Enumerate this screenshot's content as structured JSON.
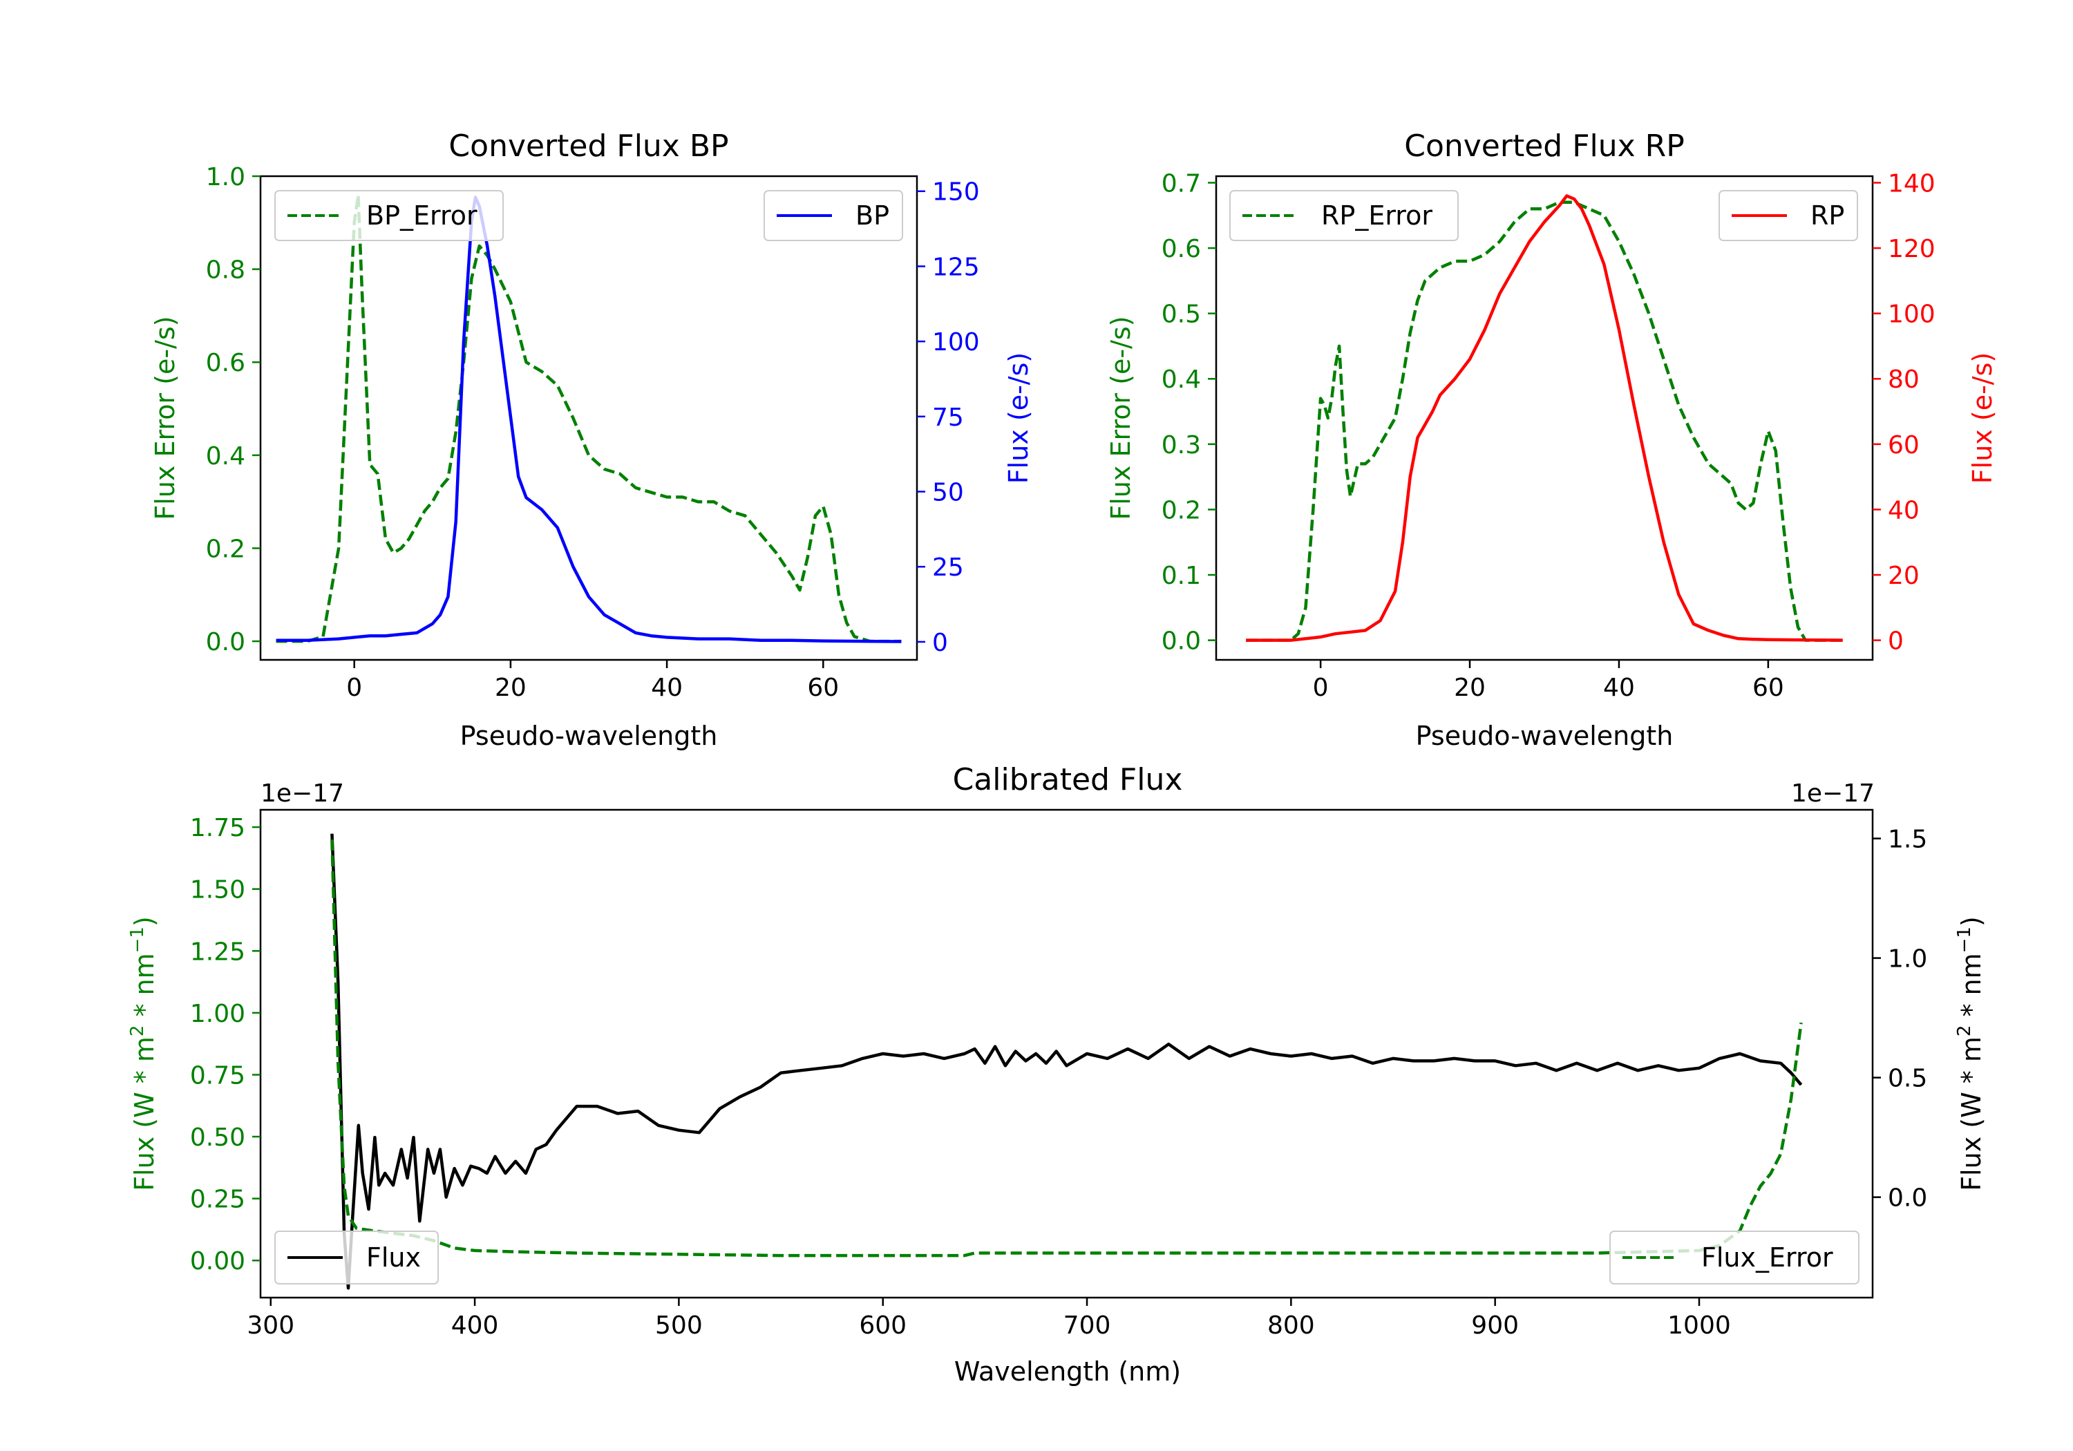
{
  "colors": {
    "bp": "#0000ff",
    "rp": "#ff0000",
    "error": "#008000",
    "flux": "#000000",
    "axis": "#000000"
  },
  "chart_data": [
    {
      "id": "bp",
      "type": "line",
      "title": "Converted Flux BP",
      "xlabel": "Pseudo-wavelength",
      "ylabel_left": "Flux Error (e-/s)",
      "ylabel_right": "Flux (e-/s)",
      "xlim": [
        -12,
        72
      ],
      "ylim_left": [
        -0.04,
        1.0
      ],
      "ylim_right": [
        -6,
        155
      ],
      "xticks": [
        0,
        20,
        40,
        60
      ],
      "yticks_left": [
        0.0,
        0.2,
        0.4,
        0.6,
        0.8,
        1.0
      ],
      "yticks_right": [
        0,
        25,
        50,
        75,
        100,
        125,
        150
      ],
      "xtick_labels": [
        "0",
        "20",
        "40",
        "60"
      ],
      "ytick_labels_left": [
        "0.0",
        "0.2",
        "0.4",
        "0.6",
        "0.8",
        "1.0"
      ],
      "ytick_labels_right": [
        "0",
        "25",
        "50",
        "75",
        "100",
        "125",
        "150"
      ],
      "legend_left": {
        "label": "BP_Error",
        "position": "upper left"
      },
      "legend_right": {
        "label": "BP",
        "position": "upper right"
      },
      "series": [
        {
          "name": "BP_Error",
          "axis": "left",
          "style": "dashed",
          "color": "#008000",
          "x": [
            -10,
            -6,
            -4,
            -2,
            -1,
            0,
            0.5,
            1,
            2,
            3,
            4,
            5,
            6,
            7,
            8,
            9,
            10,
            11,
            12,
            13,
            14,
            15,
            16,
            17,
            18,
            20,
            22,
            24,
            26,
            28,
            30,
            32,
            34,
            36,
            38,
            40,
            42,
            44,
            46,
            48,
            50,
            52,
            54,
            56,
            57,
            58,
            59,
            60,
            61,
            62,
            63,
            64,
            66,
            70
          ],
          "y": [
            0.0,
            0.0,
            0.01,
            0.2,
            0.55,
            0.9,
            0.96,
            0.75,
            0.38,
            0.36,
            0.22,
            0.19,
            0.2,
            0.22,
            0.25,
            0.28,
            0.3,
            0.33,
            0.35,
            0.45,
            0.6,
            0.78,
            0.85,
            0.83,
            0.8,
            0.73,
            0.6,
            0.58,
            0.55,
            0.48,
            0.4,
            0.37,
            0.36,
            0.33,
            0.32,
            0.31,
            0.31,
            0.3,
            0.3,
            0.28,
            0.27,
            0.23,
            0.19,
            0.14,
            0.11,
            0.18,
            0.27,
            0.29,
            0.23,
            0.1,
            0.04,
            0.01,
            0.0,
            0.0
          ]
        },
        {
          "name": "BP",
          "axis": "right",
          "style": "solid",
          "color": "#0000ff",
          "x": [
            -10,
            -6,
            -2,
            0,
            2,
            4,
            6,
            8,
            10,
            11,
            12,
            13,
            14,
            15,
            15.5,
            16,
            17,
            18,
            19,
            20,
            21,
            22,
            23,
            24,
            26,
            28,
            30,
            32,
            34,
            36,
            38,
            40,
            44,
            48,
            52,
            56,
            60,
            64,
            70
          ],
          "y": [
            0.5,
            0.5,
            1,
            1.5,
            2,
            2,
            2.5,
            3,
            6,
            9,
            15,
            40,
            100,
            140,
            148,
            145,
            132,
            115,
            95,
            75,
            55,
            48,
            46,
            44,
            38,
            25,
            15,
            9,
            6,
            3,
            2,
            1.5,
            1,
            1,
            0.5,
            0.5,
            0.3,
            0.2,
            0.1
          ]
        }
      ]
    },
    {
      "id": "rp",
      "type": "line",
      "title": "Converted Flux RP",
      "xlabel": "Pseudo-wavelength",
      "ylabel_left": "Flux Error (e-/s)",
      "ylabel_right": "Flux (e-/s)",
      "xlim": [
        -14,
        74
      ],
      "ylim_left": [
        -0.03,
        0.71
      ],
      "ylim_right": [
        -6,
        142
      ],
      "xticks": [
        0,
        20,
        40,
        60
      ],
      "yticks_left": [
        0.0,
        0.1,
        0.2,
        0.3,
        0.4,
        0.5,
        0.6,
        0.7
      ],
      "yticks_right": [
        0,
        20,
        40,
        60,
        80,
        100,
        120,
        140
      ],
      "xtick_labels": [
        "0",
        "20",
        "40",
        "60"
      ],
      "ytick_labels_left": [
        "0.0",
        "0.1",
        "0.2",
        "0.3",
        "0.4",
        "0.5",
        "0.6",
        "0.7"
      ],
      "ytick_labels_right": [
        "0",
        "20",
        "40",
        "60",
        "80",
        "100",
        "120",
        "140"
      ],
      "legend_left": {
        "label": "RP_Error",
        "position": "upper left"
      },
      "legend_right": {
        "label": "RP",
        "position": "upper right"
      },
      "series": [
        {
          "name": "RP_Error",
          "axis": "left",
          "style": "dashed",
          "color": "#008000",
          "x": [
            -10,
            -4,
            -3,
            -2,
            -1,
            0,
            0.5,
            1,
            1.5,
            2,
            2.5,
            3,
            3.5,
            4,
            5,
            6,
            7,
            8,
            9,
            10,
            11,
            12,
            13,
            14,
            16,
            18,
            20,
            22,
            24,
            26,
            28,
            30,
            32,
            34,
            36,
            38,
            40,
            42,
            44,
            46,
            48,
            50,
            52,
            54,
            55,
            56,
            57,
            58,
            59,
            60,
            61,
            62,
            63,
            64,
            65,
            70
          ],
          "y": [
            0.0,
            0.0,
            0.01,
            0.05,
            0.2,
            0.37,
            0.36,
            0.34,
            0.37,
            0.42,
            0.45,
            0.35,
            0.26,
            0.22,
            0.27,
            0.27,
            0.28,
            0.3,
            0.32,
            0.34,
            0.4,
            0.47,
            0.52,
            0.55,
            0.57,
            0.58,
            0.58,
            0.59,
            0.61,
            0.64,
            0.66,
            0.66,
            0.67,
            0.67,
            0.66,
            0.65,
            0.61,
            0.56,
            0.5,
            0.43,
            0.36,
            0.31,
            0.27,
            0.25,
            0.24,
            0.21,
            0.2,
            0.21,
            0.27,
            0.32,
            0.29,
            0.18,
            0.08,
            0.02,
            0.0,
            0.0
          ]
        },
        {
          "name": "RP",
          "axis": "right",
          "style": "solid",
          "color": "#ff0000",
          "x": [
            -10,
            -4,
            0,
            2,
            4,
            6,
            8,
            10,
            11,
            12,
            13,
            14,
            15,
            16,
            18,
            20,
            22,
            24,
            26,
            28,
            30,
            32,
            33,
            34,
            35,
            36,
            38,
            40,
            42,
            44,
            46,
            48,
            50,
            52,
            54,
            56,
            58,
            60,
            64,
            70
          ],
          "y": [
            0,
            0,
            1,
            2,
            2.5,
            3,
            6,
            15,
            30,
            50,
            62,
            66,
            70,
            75,
            80,
            86,
            95,
            106,
            114,
            122,
            128,
            133,
            136,
            135,
            132,
            127,
            115,
            95,
            72,
            50,
            30,
            14,
            5,
            3,
            1.5,
            0.5,
            0.3,
            0.2,
            0.1,
            0
          ]
        }
      ]
    },
    {
      "id": "calibrated",
      "type": "line",
      "title": "Calibrated Flux",
      "xlabel": "Wavelength (nm)",
      "ylabel_left": "Flux (W * m^2 * nm^-1)",
      "ylabel_right": "Flux (W * m^2 * nm^-1)",
      "xlim": [
        295,
        1085
      ],
      "ylim_left": [
        -0.15,
        1.82
      ],
      "ylim_right": [
        -0.42,
        1.62
      ],
      "xticks": [
        300,
        400,
        500,
        600,
        700,
        800,
        900,
        1000
      ],
      "yticks_left": [
        0.0,
        0.25,
        0.5,
        0.75,
        1.0,
        1.25,
        1.5,
        1.75
      ],
      "yticks_right": [
        0.0,
        0.5,
        1.0,
        1.5
      ],
      "xtick_labels": [
        "300",
        "400",
        "500",
        "600",
        "700",
        "800",
        "900",
        "1000"
      ],
      "ytick_labels_left": [
        "0.00",
        "0.25",
        "0.50",
        "0.75",
        "1.00",
        "1.25",
        "1.50",
        "1.75"
      ],
      "ytick_labels_right": [
        "0.0",
        "0.5",
        "1.0",
        "1.5"
      ],
      "offset_left": "1e−17",
      "offset_right": "1e−17",
      "legend_left": {
        "label": "Flux",
        "position": "lower left"
      },
      "legend_right": {
        "label": "Flux_Error",
        "position": "lower right"
      },
      "series": [
        {
          "name": "Flux",
          "axis": "right",
          "style": "solid",
          "color": "#000000",
          "x": [
            330,
            333,
            336,
            338,
            340,
            343,
            345,
            348,
            351,
            353,
            356,
            360,
            364,
            367,
            370,
            373,
            377,
            380,
            383,
            386,
            390,
            394,
            398,
            402,
            406,
            410,
            415,
            420,
            425,
            430,
            435,
            440,
            450,
            460,
            470,
            480,
            490,
            500,
            510,
            520,
            530,
            540,
            550,
            560,
            570,
            580,
            590,
            600,
            610,
            620,
            630,
            640,
            645,
            650,
            655,
            660,
            665,
            670,
            675,
            680,
            685,
            690,
            700,
            710,
            720,
            730,
            740,
            750,
            760,
            770,
            780,
            790,
            800,
            810,
            820,
            830,
            840,
            850,
            860,
            870,
            880,
            890,
            900,
            910,
            920,
            930,
            940,
            950,
            960,
            970,
            980,
            990,
            1000,
            1010,
            1020,
            1030,
            1040,
            1045,
            1050
          ],
          "y": [
            1.52,
            0.9,
            -0.15,
            -0.38,
            -0.1,
            0.3,
            0.1,
            -0.05,
            0.25,
            0.05,
            0.1,
            0.05,
            0.2,
            0.08,
            0.25,
            -0.1,
            0.2,
            0.1,
            0.2,
            0.0,
            0.12,
            0.05,
            0.13,
            0.12,
            0.1,
            0.17,
            0.1,
            0.15,
            0.1,
            0.2,
            0.22,
            0.28,
            0.38,
            0.38,
            0.35,
            0.36,
            0.3,
            0.28,
            0.27,
            0.37,
            0.42,
            0.46,
            0.52,
            0.53,
            0.54,
            0.55,
            0.58,
            0.6,
            0.59,
            0.6,
            0.58,
            0.6,
            0.62,
            0.56,
            0.63,
            0.55,
            0.61,
            0.57,
            0.6,
            0.56,
            0.61,
            0.55,
            0.6,
            0.58,
            0.62,
            0.58,
            0.64,
            0.58,
            0.63,
            0.59,
            0.62,
            0.6,
            0.59,
            0.6,
            0.58,
            0.59,
            0.56,
            0.58,
            0.57,
            0.57,
            0.58,
            0.57,
            0.57,
            0.55,
            0.56,
            0.53,
            0.56,
            0.53,
            0.56,
            0.53,
            0.55,
            0.53,
            0.54,
            0.58,
            0.6,
            0.57,
            0.56,
            0.52,
            0.47
          ]
        },
        {
          "name": "Flux_Error",
          "axis": "left",
          "style": "dashed",
          "color": "#008000",
          "x": [
            330,
            333,
            336,
            338,
            342,
            350,
            360,
            370,
            380,
            390,
            400,
            420,
            450,
            500,
            550,
            600,
            640,
            645,
            700,
            800,
            900,
            950,
            1000,
            1010,
            1020,
            1025,
            1030,
            1035,
            1040,
            1045,
            1050
          ],
          "y": [
            1.7,
            0.8,
            0.3,
            0.18,
            0.13,
            0.12,
            0.11,
            0.1,
            0.08,
            0.05,
            0.04,
            0.035,
            0.03,
            0.025,
            0.02,
            0.02,
            0.02,
            0.03,
            0.03,
            0.03,
            0.03,
            0.03,
            0.04,
            0.06,
            0.12,
            0.22,
            0.3,
            0.35,
            0.43,
            0.65,
            0.96
          ]
        }
      ]
    }
  ]
}
